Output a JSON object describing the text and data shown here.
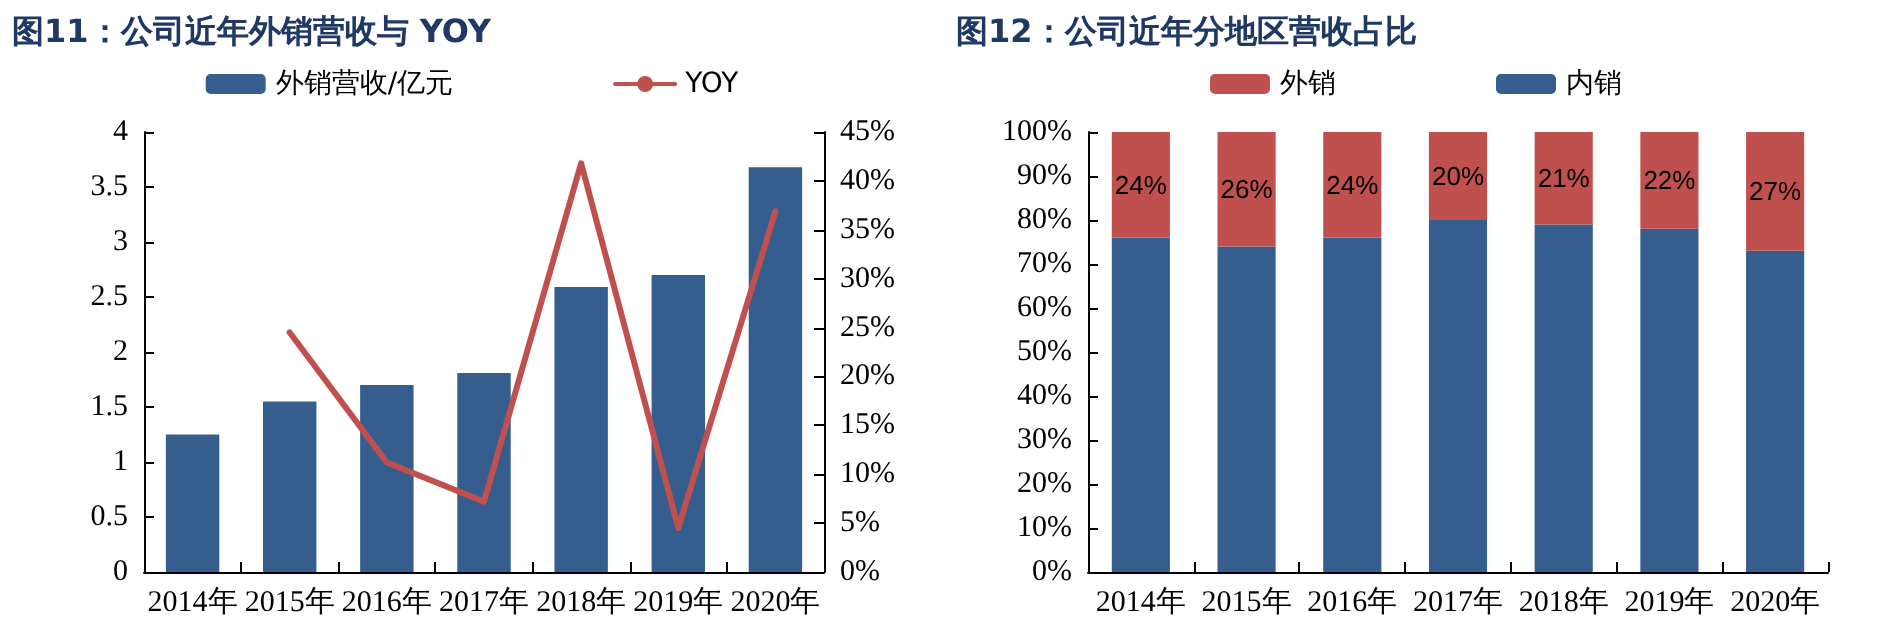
{
  "chart_data": [
    {
      "type": "bar",
      "title": "图11：公司近年外销营收与 YOY",
      "categories": [
        "2014年",
        "2015年",
        "2016年",
        "2017年",
        "2018年",
        "2019年",
        "2020年"
      ],
      "series": [
        {
          "name": "外销营收/亿元",
          "color": "#355e8f",
          "values": [
            1.25,
            1.55,
            1.7,
            1.81,
            2.59,
            2.7,
            3.68
          ]
        },
        {
          "name": "YOY",
          "type": "line",
          "axis": "y2",
          "color": "#c0504d",
          "values": [
            null,
            24.5,
            11.2,
            7.2,
            41.8,
            4.5,
            36.9
          ]
        }
      ],
      "ylim": [
        0,
        4
      ],
      "yticks": [
        0,
        0.5,
        1,
        1.5,
        2,
        2.5,
        3,
        3.5,
        4
      ],
      "y2lim": [
        0,
        45
      ],
      "y2ticks": [
        {
          "value": 0,
          "label": "0%"
        },
        {
          "value": 5,
          "label": "5%"
        },
        {
          "value": 10,
          "label": "10%"
        },
        {
          "value": 15,
          "label": "15%"
        },
        {
          "value": 20,
          "label": "20%"
        },
        {
          "value": 25,
          "label": "25%"
        },
        {
          "value": 30,
          "label": "30%"
        },
        {
          "value": 35,
          "label": "35%"
        },
        {
          "value": 40,
          "label": "40%"
        },
        {
          "value": 45,
          "label": "45%"
        }
      ],
      "legend": "top",
      "grid": false,
      "marker": "none"
    },
    {
      "type": "bar",
      "title": "图12：公司近年分地区营收占比",
      "categories": [
        "2014年",
        "2015年",
        "2016年",
        "2017年",
        "2018年",
        "2019年",
        "2020年"
      ],
      "stacked": true,
      "series": [
        {
          "name": "内销",
          "color": "#355e8f",
          "values": [
            76,
            74,
            76,
            80,
            79,
            78,
            73
          ]
        },
        {
          "name": "外销",
          "color": "#c0504d",
          "values": [
            24,
            26,
            24,
            20,
            21,
            22,
            27
          ],
          "value_labels": [
            "24%",
            "26%",
            "24%",
            "20%",
            "21%",
            "22%",
            "27%"
          ]
        }
      ],
      "ylim": [
        0,
        100
      ],
      "yticks": [
        {
          "value": 0,
          "label": "0%"
        },
        {
          "value": 10,
          "label": "10%"
        },
        {
          "value": 20,
          "label": "20%"
        },
        {
          "value": 30,
          "label": "30%"
        },
        {
          "value": 40,
          "label": "40%"
        },
        {
          "value": 50,
          "label": "50%"
        },
        {
          "value": 60,
          "label": "60%"
        },
        {
          "value": 70,
          "label": "70%"
        },
        {
          "value": 80,
          "label": "80%"
        },
        {
          "value": 90,
          "label": "90%"
        },
        {
          "value": 100,
          "label": "100%"
        }
      ],
      "legend": "top",
      "grid": false
    }
  ]
}
